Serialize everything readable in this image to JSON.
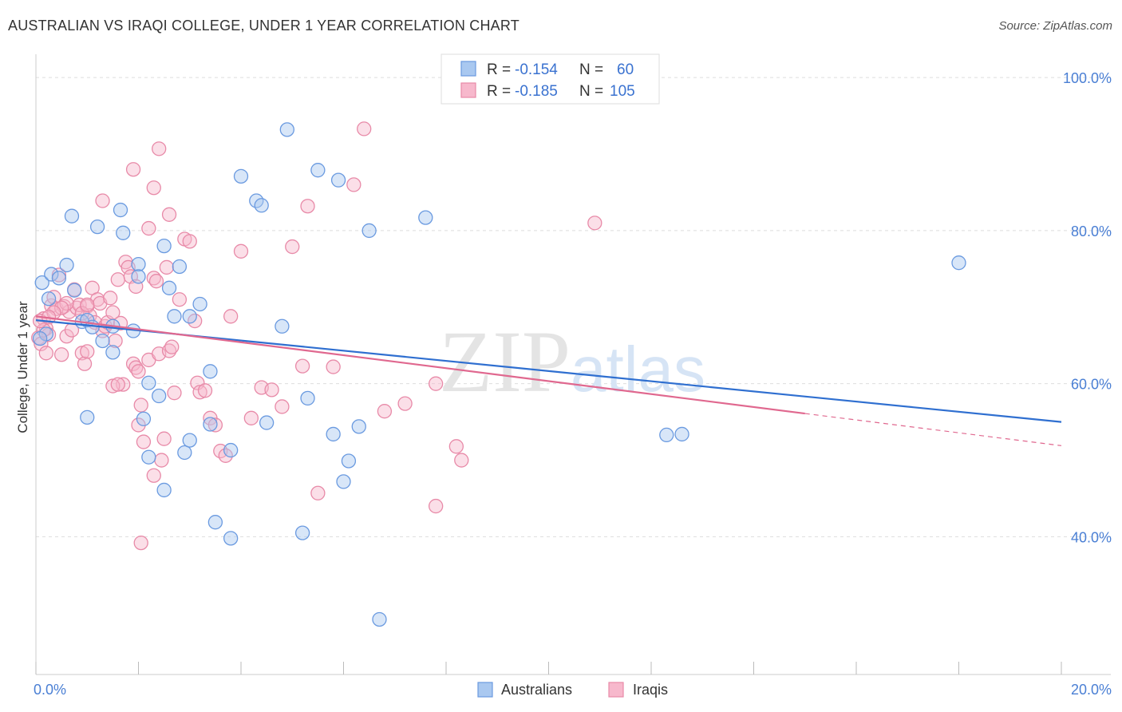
{
  "title": "AUSTRALIAN VS IRAQI COLLEGE, UNDER 1 YEAR CORRELATION CHART",
  "source": "Source: ZipAtlas.com",
  "watermark": {
    "zip": "ZIP",
    "atlas": "atlas"
  },
  "legend": {
    "rows": [
      {
        "r_label": "R =",
        "r_value": "-0.154",
        "n_label": "N =",
        "n_value": "60"
      },
      {
        "r_label": "R =",
        "r_value": "-0.185",
        "n_label": "N =",
        "n_value": "105"
      }
    ]
  },
  "colors": {
    "blue_fill": "#a9c8f0",
    "blue_stroke": "#6a9ae0",
    "blue_line": "#2f6fd0",
    "pink_fill": "#f7b8cc",
    "pink_stroke": "#e88aa8",
    "pink_line": "#e0688f",
    "grid": "#dddddd",
    "tick_label": "#4a7fd4"
  },
  "chart_data": {
    "type": "scatter",
    "xlabel": "",
    "ylabel": "College, Under 1 year",
    "xlim": [
      0,
      20
    ],
    "ylim": [
      22,
      102
    ],
    "x_tick_labels": [
      "0.0%",
      "20.0%"
    ],
    "y_ticks": [
      40,
      60,
      80,
      100
    ],
    "y_tick_labels": [
      "40.0%",
      "60.0%",
      "80.0%",
      "100.0%"
    ],
    "grid": true,
    "series": [
      {
        "name": "Australians",
        "trend": {
          "x0": 0,
          "y0": 68.3,
          "x1": 20,
          "y1": 55.0
        },
        "points": [
          [
            0.12,
            73.2
          ],
          [
            0.3,
            74.3
          ],
          [
            0.45,
            73.8
          ],
          [
            0.6,
            75.5
          ],
          [
            0.75,
            72.2
          ],
          [
            0.25,
            71.1
          ],
          [
            0.9,
            68.1
          ],
          [
            1.0,
            68.3
          ],
          [
            1.1,
            67.4
          ],
          [
            0.7,
            81.9
          ],
          [
            1.2,
            80.5
          ],
          [
            1.65,
            82.7
          ],
          [
            1.7,
            79.7
          ],
          [
            2.5,
            78.0
          ],
          [
            2.8,
            75.3
          ],
          [
            2.0,
            75.6
          ],
          [
            2.0,
            74.0
          ],
          [
            2.6,
            72.5
          ],
          [
            3.2,
            70.4
          ],
          [
            2.7,
            68.8
          ],
          [
            3.0,
            68.8
          ],
          [
            1.9,
            66.9
          ],
          [
            1.3,
            65.6
          ],
          [
            1.5,
            64.1
          ],
          [
            3.4,
            61.6
          ],
          [
            2.2,
            60.1
          ],
          [
            2.4,
            58.4
          ],
          [
            1.0,
            55.6
          ],
          [
            1.5,
            67.5
          ],
          [
            2.1,
            55.4
          ],
          [
            3.4,
            54.7
          ],
          [
            4.5,
            54.9
          ],
          [
            2.2,
            50.4
          ],
          [
            2.9,
            51.0
          ],
          [
            3.0,
            52.6
          ],
          [
            3.8,
            51.3
          ],
          [
            2.5,
            46.1
          ],
          [
            3.5,
            41.9
          ],
          [
            3.8,
            39.8
          ],
          [
            5.2,
            40.5
          ],
          [
            4.0,
            87.1
          ],
          [
            4.3,
            83.9
          ],
          [
            4.4,
            83.3
          ],
          [
            4.9,
            93.2
          ],
          [
            5.5,
            87.9
          ],
          [
            5.9,
            86.6
          ],
          [
            6.5,
            80.0
          ],
          [
            7.6,
            81.7
          ],
          [
            4.8,
            67.5
          ],
          [
            5.3,
            58.1
          ],
          [
            5.8,
            53.4
          ],
          [
            6.3,
            54.4
          ],
          [
            6.1,
            49.9
          ],
          [
            6.0,
            47.2
          ],
          [
            6.7,
            29.2
          ],
          [
            12.3,
            53.3
          ],
          [
            12.6,
            53.4
          ],
          [
            18.0,
            75.8
          ],
          [
            0.2,
            66.5
          ],
          [
            0.08,
            65.9
          ]
        ]
      },
      {
        "name": "Iraqis",
        "trend": {
          "x0": 0,
          "y0": 68.8,
          "x1": 15.0,
          "y1": 56.1,
          "dash_x1": 20,
          "dash_y1": 51.9
        },
        "points": [
          [
            0.05,
            66.0
          ],
          [
            0.1,
            65.2
          ],
          [
            0.15,
            68.5
          ],
          [
            0.2,
            67.2
          ],
          [
            0.25,
            66.4
          ],
          [
            0.3,
            70.2
          ],
          [
            0.35,
            71.3
          ],
          [
            0.4,
            69.8
          ],
          [
            0.45,
            74.2
          ],
          [
            0.5,
            63.8
          ],
          [
            0.55,
            70.1
          ],
          [
            0.6,
            66.2
          ],
          [
            0.65,
            69.4
          ],
          [
            0.7,
            67.0
          ],
          [
            0.75,
            72.3
          ],
          [
            0.8,
            69.9
          ],
          [
            0.85,
            70.3
          ],
          [
            0.9,
            64.0
          ],
          [
            0.95,
            62.6
          ],
          [
            1.0,
            70.1
          ],
          [
            1.05,
            68.9
          ],
          [
            1.1,
            72.5
          ],
          [
            1.15,
            68.0
          ],
          [
            1.2,
            71.0
          ],
          [
            1.25,
            70.5
          ],
          [
            1.3,
            66.9
          ],
          [
            1.35,
            67.5
          ],
          [
            1.4,
            68.0
          ],
          [
            1.45,
            71.2
          ],
          [
            1.5,
            69.3
          ],
          [
            1.55,
            65.6
          ],
          [
            1.6,
            73.6
          ],
          [
            1.65,
            67.9
          ],
          [
            1.7,
            59.9
          ],
          [
            1.75,
            75.9
          ],
          [
            1.8,
            75.2
          ],
          [
            1.85,
            74.0
          ],
          [
            1.9,
            62.6
          ],
          [
            1.95,
            62.1
          ],
          [
            2.0,
            61.6
          ],
          [
            2.05,
            57.2
          ],
          [
            2.1,
            52.4
          ],
          [
            2.2,
            63.1
          ],
          [
            2.3,
            73.8
          ],
          [
            2.35,
            73.4
          ],
          [
            2.4,
            63.9
          ],
          [
            2.45,
            50.0
          ],
          [
            2.5,
            52.8
          ],
          [
            2.55,
            75.2
          ],
          [
            2.6,
            64.3
          ],
          [
            2.65,
            64.8
          ],
          [
            2.7,
            58.8
          ],
          [
            2.8,
            71.0
          ],
          [
            2.9,
            78.9
          ],
          [
            3.0,
            78.6
          ],
          [
            3.1,
            68.2
          ],
          [
            3.15,
            60.1
          ],
          [
            3.2,
            58.9
          ],
          [
            3.3,
            59.1
          ],
          [
            3.4,
            55.5
          ],
          [
            3.5,
            54.6
          ],
          [
            3.6,
            51.2
          ],
          [
            3.7,
            50.6
          ],
          [
            3.8,
            68.8
          ],
          [
            4.0,
            77.3
          ],
          [
            4.2,
            55.5
          ],
          [
            4.4,
            59.5
          ],
          [
            4.6,
            59.2
          ],
          [
            4.8,
            57.0
          ],
          [
            5.0,
            77.9
          ],
          [
            5.2,
            62.3
          ],
          [
            5.3,
            83.2
          ],
          [
            5.5,
            45.7
          ],
          [
            5.8,
            62.2
          ],
          [
            6.2,
            86.0
          ],
          [
            6.4,
            93.3
          ],
          [
            6.8,
            56.4
          ],
          [
            7.2,
            57.4
          ],
          [
            7.8,
            60.0
          ],
          [
            8.2,
            51.8
          ],
          [
            8.3,
            50.0
          ],
          [
            7.8,
            44.0
          ],
          [
            10.9,
            81.0
          ],
          [
            1.3,
            83.9
          ],
          [
            1.9,
            88.0
          ],
          [
            2.4,
            90.7
          ],
          [
            2.3,
            85.6
          ],
          [
            2.6,
            82.1
          ],
          [
            2.2,
            80.3
          ],
          [
            1.95,
            72.7
          ],
          [
            1.5,
            59.7
          ],
          [
            1.6,
            59.9
          ],
          [
            2.0,
            54.6
          ],
          [
            2.3,
            48.0
          ],
          [
            2.05,
            39.2
          ],
          [
            0.9,
            69.2
          ],
          [
            1.0,
            70.3
          ],
          [
            0.6,
            70.5
          ],
          [
            0.5,
            69.9
          ],
          [
            0.35,
            69.3
          ],
          [
            0.2,
            64.0
          ],
          [
            0.15,
            67.0
          ],
          [
            0.08,
            68.2
          ],
          [
            0.25,
            68.7
          ],
          [
            1.0,
            64.2
          ]
        ]
      }
    ]
  },
  "bottom_legend": [
    {
      "label": "Australians"
    },
    {
      "label": "Iraqis"
    }
  ]
}
